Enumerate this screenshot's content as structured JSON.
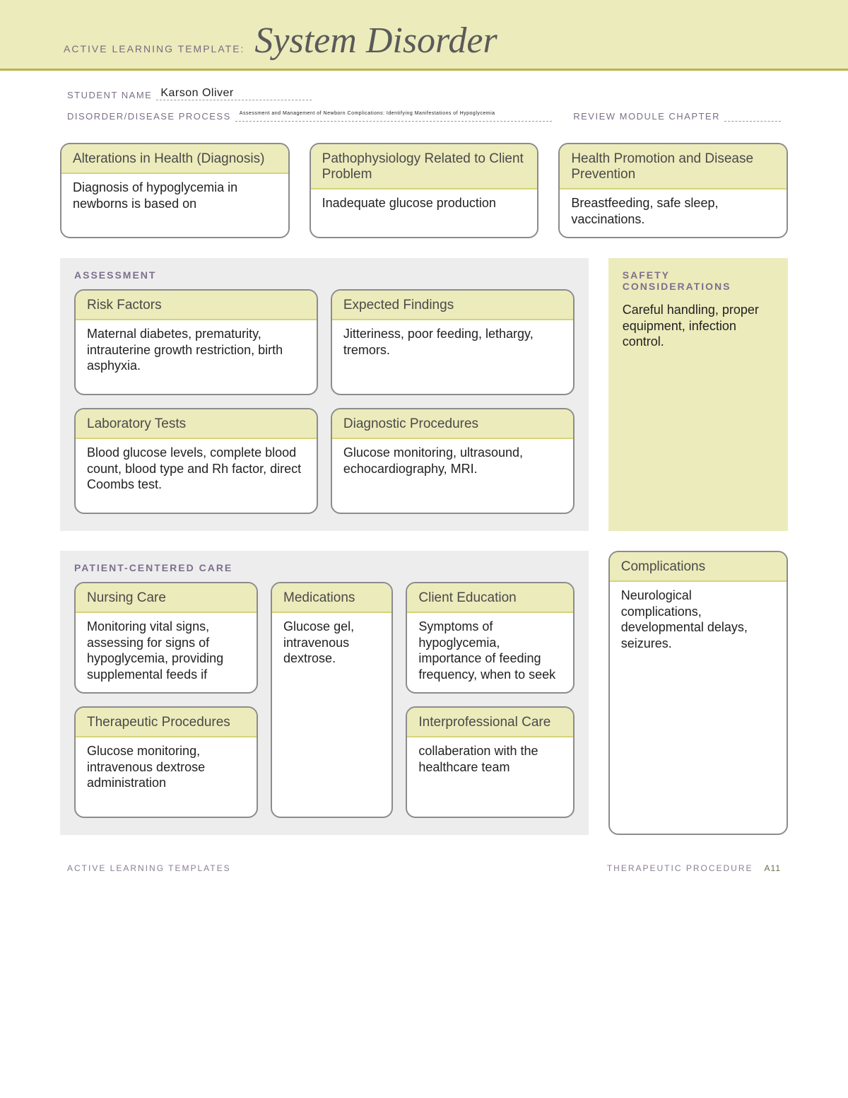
{
  "colors": {
    "banner_bg": "#ecebbb",
    "banner_border": "#b9b54e",
    "card_border": "#8c8c8c",
    "card_head_bg": "#ecebbb",
    "card_head_border": "#d7d37a",
    "panel_gray": "#eeeded",
    "panel_yellow": "#ecebbb",
    "label_purple": "#7c6f8f",
    "text": "#222222"
  },
  "banner": {
    "label": "ACTIVE LEARNING TEMPLATE:",
    "title": "System Disorder"
  },
  "meta": {
    "student_label": "STUDENT NAME",
    "student_value": "Karson Oliver",
    "disorder_label": "DISORDER/DISEASE PROCESS",
    "disorder_value": "Assessment and Management of Newborn Complications: Identifying Manifestations of Hypoglycemia",
    "chapter_label": "REVIEW MODULE CHAPTER",
    "chapter_value": ""
  },
  "cards": {
    "alterations": {
      "title": "Alterations in Health (Diagnosis)",
      "body": "Diagnosis of hypoglycemia in newborns is based on"
    },
    "patho": {
      "title": "Pathophysiology Related to Client Problem",
      "body": "Inadequate glucose production"
    },
    "health_promo": {
      "title": "Health Promotion and Disease Prevention",
      "body": "Breastfeeding, safe sleep, vaccinations."
    },
    "risk": {
      "title": "Risk Factors",
      "body": "Maternal diabetes, prematurity, intrauterine growth restriction, birth asphyxia."
    },
    "expected": {
      "title": "Expected Findings",
      "body": "Jitteriness, poor feeding, lethargy, tremors."
    },
    "labs": {
      "title": "Laboratory Tests",
      "body": "Blood glucose levels, complete blood count, blood type and Rh factor, direct Coombs test."
    },
    "diag": {
      "title": "Diagnostic Procedures",
      "body": "Glucose monitoring, ultrasound, echocardiography, MRI."
    },
    "nursing": {
      "title": "Nursing Care",
      "body": "Monitoring vital signs, assessing for signs of hypoglycemia, providing supplemental feeds if"
    },
    "meds": {
      "title": "Medications",
      "body": "Glucose gel, intravenous dextrose."
    },
    "education": {
      "title": "Client Education",
      "body": "Symptoms of hypoglycemia, importance of feeding frequency, when to seek"
    },
    "therapeutic": {
      "title": "Therapeutic Procedures",
      "body": "Glucose monitoring, intravenous dextrose administration"
    },
    "interprof": {
      "title": "Interprofessional Care",
      "body": "collaberation with the healthcare team"
    },
    "complications": {
      "title": "Complications",
      "body": "Neurological complications, developmental delays, seizures."
    }
  },
  "panels": {
    "assessment": "ASSESSMENT",
    "safety_title": "SAFETY CONSIDERATIONS",
    "safety_body": "Careful handling, proper equipment, infection control.",
    "pcc": "PATIENT-CENTERED CARE"
  },
  "footer": {
    "left": "ACTIVE LEARNING TEMPLATES",
    "right_label": "THERAPEUTIC PROCEDURE",
    "right_page": "A11"
  }
}
